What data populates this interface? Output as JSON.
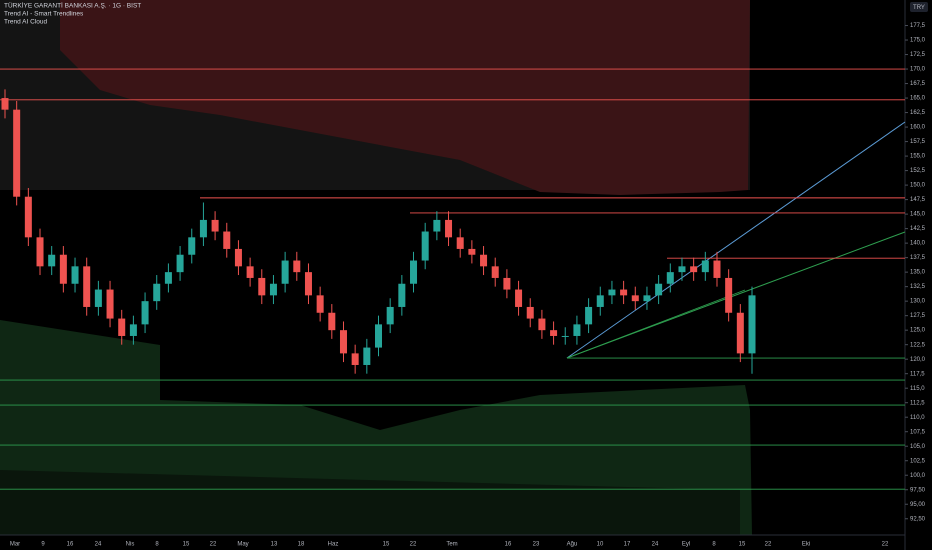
{
  "chart_data": {
    "type": "candlestick",
    "title": "TÜRKİYE GARANTİ BANKASI A.Ş. · 1G · BIST",
    "indicators": [
      "Trend AI - Smart Trendlines",
      "Trend AI Cloud"
    ],
    "currency": "TRY",
    "x_labels": [
      "Mar",
      "9",
      "16",
      "24",
      "Nis",
      "8",
      "15",
      "22",
      "May",
      "13",
      "18",
      "Haz",
      "15",
      "22",
      "Tem",
      "16",
      "23",
      "Ağu",
      "10",
      "17",
      "24",
      "Eyl",
      "8",
      "15",
      "22",
      "Eki",
      "22"
    ],
    "up_color": "#26a69a",
    "down_color": "#ef5350",
    "open": [
      165,
      163,
      148,
      141,
      136,
      138,
      133,
      136,
      129,
      132,
      127,
      124,
      126,
      130,
      133,
      135,
      138,
      141,
      144,
      142,
      139,
      136,
      134,
      131,
      133,
      137,
      135,
      131,
      128,
      125,
      121,
      119,
      122,
      126,
      129,
      133,
      137,
      142,
      144,
      141,
      139,
      138,
      136,
      134,
      132,
      129,
      127,
      125,
      124,
      124,
      126,
      129,
      131,
      132,
      131,
      130,
      131,
      133,
      135,
      136,
      135,
      137,
      134,
      128,
      121
    ],
    "high": [
      166.5,
      164.5,
      149.5,
      142.5,
      139.5,
      139.5,
      137.5,
      137.5,
      133.5,
      133.5,
      128.5,
      127.5,
      131.5,
      134.5,
      136.5,
      139.5,
      142.5,
      147,
      145.5,
      143.5,
      140.5,
      137.5,
      135.5,
      134.5,
      138.5,
      138.5,
      136.5,
      132.5,
      129.5,
      126.5,
      122.5,
      123.5,
      127.5,
      130.5,
      134.5,
      138.5,
      143.5,
      145.5,
      145.5,
      142.5,
      140.5,
      139.5,
      137.5,
      135.5,
      133.5,
      130.5,
      128.5,
      126.5,
      125.5,
      127.5,
      130.5,
      132.5,
      133.5,
      133.5,
      132.5,
      132.5,
      134.5,
      136.5,
      137.5,
      137.5,
      138.5,
      138.5,
      135.5,
      129.5,
      132.5
    ],
    "low": [
      161.5,
      146.5,
      139.5,
      134.5,
      134.5,
      131.5,
      131.5,
      127.5,
      127.5,
      125.5,
      122.5,
      122.5,
      124.5,
      128.5,
      131.5,
      133.5,
      136.5,
      139.5,
      140.5,
      137.5,
      134.5,
      132.5,
      129.5,
      129.5,
      131.5,
      133.5,
      129.5,
      126.5,
      123.5,
      119.5,
      117.5,
      117.5,
      120.5,
      124.5,
      127.5,
      131.5,
      135.5,
      140.5,
      139.5,
      137.5,
      136.5,
      134.5,
      132.5,
      130.5,
      127.5,
      125.5,
      123.5,
      122.5,
      122.5,
      122.5,
      124.5,
      127.5,
      129.5,
      129.5,
      128.5,
      128.5,
      129.5,
      131.5,
      133.5,
      133.5,
      133.5,
      132.5,
      126.5,
      119.5,
      117.5
    ],
    "close": [
      163,
      148,
      141,
      136,
      138,
      133,
      136,
      129,
      132,
      127,
      124,
      126,
      130,
      133,
      135,
      138,
      141,
      144,
      142,
      139,
      136,
      134,
      131,
      133,
      137,
      135,
      131,
      128,
      125,
      121,
      119,
      122,
      126,
      129,
      133,
      137,
      142,
      144,
      141,
      139,
      138,
      136,
      134,
      132,
      129,
      127,
      125,
      124,
      124,
      126,
      129,
      131,
      132,
      131,
      130,
      131,
      133,
      135,
      136,
      135,
      137,
      134,
      128,
      121,
      131
    ],
    "resistance_levels": [
      170,
      164.7,
      147.8,
      145.2,
      137.4
    ],
    "support_levels": [
      120.2,
      116.4,
      112.1,
      105.2,
      97.6
    ],
    "ylim": [
      89.7,
      181.9
    ],
    "yticks": [
      {
        "value": 92.5,
        "label": "92,50"
      },
      {
        "value": 95,
        "label": "95,00"
      },
      {
        "value": 97.5,
        "label": "97,50"
      },
      {
        "value": 100,
        "label": "100,0"
      },
      {
        "value": 102.5,
        "label": "102,5"
      },
      {
        "value": 105,
        "label": "105,0"
      },
      {
        "value": 107.5,
        "label": "107,5"
      },
      {
        "value": 110,
        "label": "110,0"
      },
      {
        "value": 112.5,
        "label": "112,5"
      },
      {
        "value": 115,
        "label": "115,0"
      },
      {
        "value": 117.5,
        "label": "117,5"
      },
      {
        "value": 120,
        "label": "120,0"
      },
      {
        "value": 122.5,
        "label": "122,5"
      },
      {
        "value": 125,
        "label": "125,0"
      },
      {
        "value": 127.5,
        "label": "127,5"
      },
      {
        "value": 130,
        "label": "130,0"
      },
      {
        "value": 132.5,
        "label": "132,5"
      },
      {
        "value": 135,
        "label": "135,0"
      },
      {
        "value": 137.5,
        "label": "137,5"
      },
      {
        "value": 140,
        "label": "140,0"
      },
      {
        "value": 142.5,
        "label": "142,5"
      },
      {
        "value": 145,
        "label": "145,0"
      },
      {
        "value": 147.5,
        "label": "147,5"
      },
      {
        "value": 150,
        "label": "150,0"
      },
      {
        "value": 152.5,
        "label": "152,5"
      },
      {
        "value": 155,
        "label": "155,0"
      },
      {
        "value": 157.5,
        "label": "157,5"
      },
      {
        "value": 160,
        "label": "160,0"
      },
      {
        "value": 162.5,
        "label": "162,5"
      },
      {
        "value": 165,
        "label": "165,0"
      },
      {
        "value": 167.5,
        "label": "167,5"
      },
      {
        "value": 170,
        "label": "170,0"
      },
      {
        "value": 172.5,
        "label": "172,5"
      },
      {
        "value": 175,
        "label": "175,0"
      },
      {
        "value": 177.5,
        "label": "177,5"
      }
    ]
  }
}
